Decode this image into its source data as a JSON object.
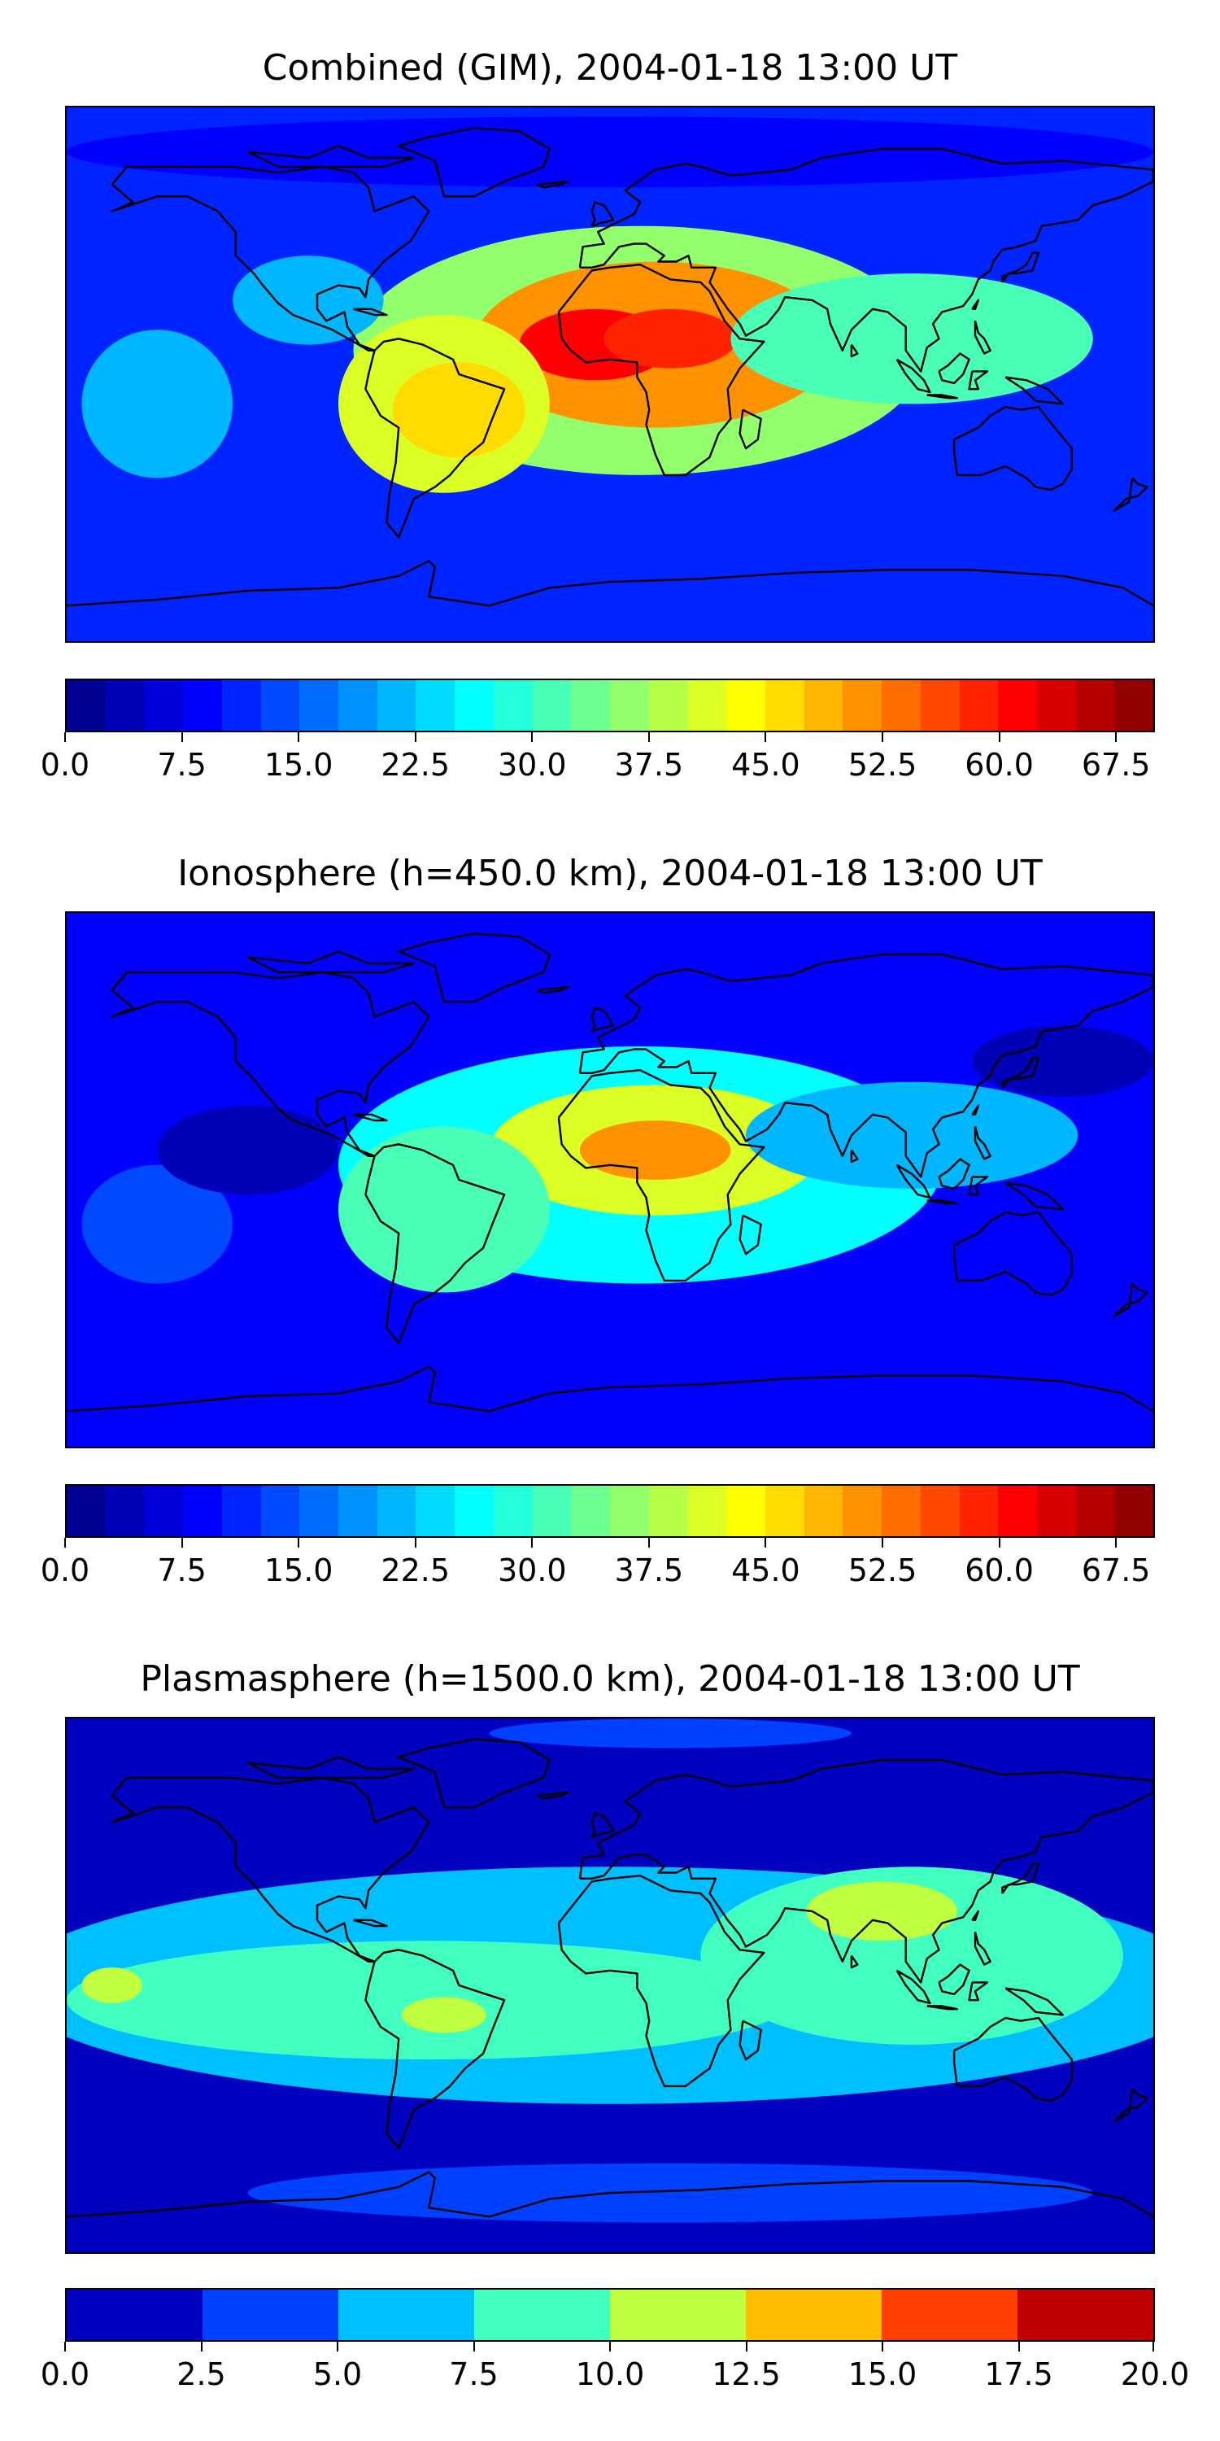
{
  "chart_data": [
    {
      "type": "heatmap",
      "title": "Combined (GIM), 2004-01-18 13:00 UT",
      "projection": "plate-carree world map",
      "coastlines": true,
      "colormap": "jet",
      "colorbar": {
        "min": 0.0,
        "max": 70.0,
        "step": 2.5,
        "placement": "bottom",
        "tick_labels": [
          "0.0",
          "7.5",
          "15.0",
          "22.5",
          "30.0",
          "37.5",
          "45.0",
          "52.5",
          "60.0",
          "67.5"
        ],
        "tick_values": [
          0.0,
          7.5,
          15.0,
          22.5,
          30.0,
          37.5,
          45.0,
          52.5,
          60.0,
          67.5
        ]
      },
      "background_level": 12,
      "features": [
        {
          "lon": 10,
          "lat": 8,
          "rlon": 95,
          "rlat": 42,
          "value": 35
        },
        {
          "lon": 15,
          "lat": 10,
          "rlon": 60,
          "rlat": 28,
          "value": 52
        },
        {
          "lon": -5,
          "lat": 10,
          "rlon": 25,
          "rlat": 12,
          "value": 60
        },
        {
          "lon": 20,
          "lat": 12,
          "rlon": 22,
          "rlat": 10,
          "value": 58
        },
        {
          "lon": -55,
          "lat": -10,
          "rlon": 35,
          "rlat": 30,
          "value": 40
        },
        {
          "lon": -50,
          "lat": -12,
          "rlon": 22,
          "rlat": 16,
          "value": 45
        },
        {
          "lon": 100,
          "lat": 12,
          "rlon": 60,
          "rlat": 22,
          "value": 32
        },
        {
          "lon": -150,
          "lat": -10,
          "rlon": 25,
          "rlat": 25,
          "value": 20
        },
        {
          "lon": -100,
          "lat": 25,
          "rlon": 25,
          "rlat": 15,
          "value": 22
        },
        {
          "lon": 0,
          "lat": 75,
          "rlon": 180,
          "rlat": 12,
          "value": 8
        },
        {
          "lon": 20,
          "lat": -80,
          "rlon": 180,
          "rlat": 10,
          "value": 10
        }
      ]
    },
    {
      "type": "heatmap",
      "title": "Ionosphere  (h=450.0 km), 2004-01-18 13:00 UT",
      "projection": "plate-carree world map",
      "coastlines": true,
      "colormap": "jet",
      "colorbar": {
        "min": 0.0,
        "max": 70.0,
        "step": 2.5,
        "placement": "bottom",
        "tick_labels": [
          "0.0",
          "7.5",
          "15.0",
          "22.5",
          "30.0",
          "37.5",
          "45.0",
          "52.5",
          "60.0",
          "67.5"
        ],
        "tick_values": [
          0.0,
          7.5,
          15.0,
          22.5,
          30.0,
          37.5,
          45.0,
          52.5,
          60.0,
          67.5
        ]
      },
      "background_level": 8,
      "features": [
        {
          "lon": 10,
          "lat": 5,
          "rlon": 100,
          "rlat": 40,
          "value": 25
        },
        {
          "lon": 15,
          "lat": 10,
          "rlon": 55,
          "rlat": 22,
          "value": 42
        },
        {
          "lon": 15,
          "lat": 10,
          "rlon": 25,
          "rlat": 10,
          "value": 50
        },
        {
          "lon": -55,
          "lat": -10,
          "rlon": 35,
          "rlat": 28,
          "value": 32
        },
        {
          "lon": 100,
          "lat": 15,
          "rlon": 55,
          "rlat": 18,
          "value": 22
        },
        {
          "lon": -150,
          "lat": -15,
          "rlon": 25,
          "rlat": 20,
          "value": 14
        },
        {
          "lon": -120,
          "lat": 10,
          "rlon": 30,
          "rlat": 15,
          "value": 4
        },
        {
          "lon": 150,
          "lat": 40,
          "rlon": 30,
          "rlat": 12,
          "value": 4
        }
      ]
    },
    {
      "type": "heatmap",
      "title": "Plasmasphere (h=1500.0 km), 2004-01-18 13:00 UT",
      "projection": "plate-carree world map",
      "coastlines": true,
      "colormap": "jet",
      "colorbar": {
        "min": 0.0,
        "max": 20.0,
        "step": 2.5,
        "placement": "bottom",
        "tick_labels": [
          "0.0",
          "2.5",
          "5.0",
          "7.5",
          "10.0",
          "12.5",
          "15.0",
          "17.5",
          "20.0"
        ],
        "tick_values": [
          0.0,
          2.5,
          5.0,
          7.5,
          10.0,
          12.5,
          15.0,
          17.5,
          20.0
        ]
      },
      "background_level": 1.5,
      "features": [
        {
          "lon": 0,
          "lat": 0,
          "rlon": 200,
          "rlat": 40,
          "value": 5.5
        },
        {
          "lon": -60,
          "lat": -5,
          "rlon": 120,
          "rlat": 20,
          "value": 8
        },
        {
          "lon": 100,
          "lat": 10,
          "rlon": 70,
          "rlat": 30,
          "value": 9
        },
        {
          "lon": 90,
          "lat": 25,
          "rlon": 25,
          "rlat": 10,
          "value": 10.5
        },
        {
          "lon": -55,
          "lat": -10,
          "rlon": 14,
          "rlat": 6,
          "value": 10.5
        },
        {
          "lon": -165,
          "lat": 0,
          "rlon": 10,
          "rlat": 6,
          "value": 10.5
        },
        {
          "lon": 20,
          "lat": -70,
          "rlon": 140,
          "rlat": 10,
          "value": 3.5
        },
        {
          "lon": 20,
          "lat": 85,
          "rlon": 60,
          "rlat": 5,
          "value": 3.5
        }
      ]
    }
  ]
}
